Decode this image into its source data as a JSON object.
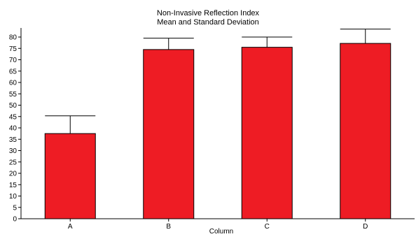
{
  "chart_data": {
    "type": "bar",
    "title": "Non-Invasive Reflection Index",
    "subtitle": "Mean and Standard Deviation",
    "xlabel": "Column",
    "ylabel": "",
    "categories": [
      "A",
      "B",
      "C",
      "D"
    ],
    "values": [
      37.5,
      74.5,
      75.5,
      77.2
    ],
    "error": [
      7.8,
      5.0,
      4.5,
      6.3
    ],
    "ylim": [
      0,
      84
    ],
    "yticks": [
      0,
      5,
      10,
      15,
      20,
      25,
      30,
      35,
      40,
      45,
      50,
      55,
      60,
      65,
      70,
      75,
      80
    ],
    "grid": false,
    "legend": "none",
    "colors": {
      "bar": "#ee1c24",
      "bar_edge": "#000000",
      "axis": "#000000"
    }
  }
}
